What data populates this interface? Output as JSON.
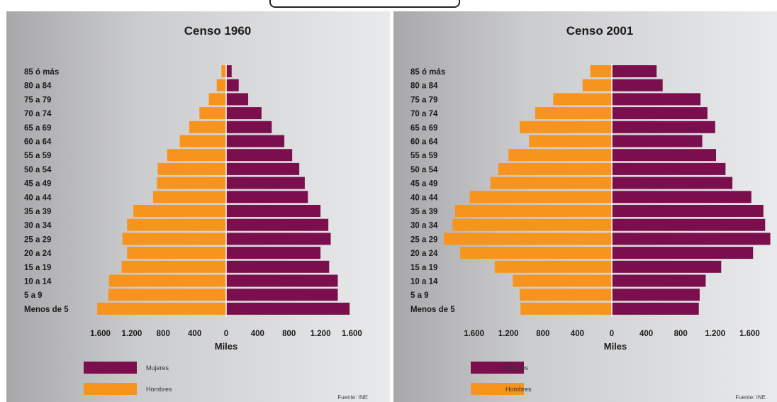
{
  "colors": {
    "mujeres": "#7b0f4d",
    "hombres": "#f7941d"
  },
  "chart_data": [
    {
      "type": "bar",
      "orientation": "horizontal-pyramid",
      "title": "Censo 1960",
      "categories": [
        "Menos de 5",
        "5 a 9",
        "10 a 14",
        "15 a 19",
        "20 a 24",
        "25 a 29",
        "30 a 34",
        "35 a 39",
        "40 a 44",
        "45 a 49",
        "50 a 54",
        "55 a 59",
        "60 a 64",
        "65 a 69",
        "70 a 74",
        "75 a 79",
        "80 a 84",
        "85 ó más"
      ],
      "series": [
        {
          "name": "Mujeres",
          "values": [
            1570,
            1420,
            1420,
            1310,
            1200,
            1330,
            1300,
            1200,
            1040,
            1000,
            930,
            840,
            740,
            580,
            450,
            280,
            160,
            70
          ]
        },
        {
          "name": "Hombres",
          "values": [
            1640,
            1500,
            1490,
            1330,
            1260,
            1320,
            1260,
            1180,
            930,
            880,
            870,
            750,
            590,
            470,
            340,
            220,
            120,
            60
          ]
        }
      ],
      "xticks": [
        "1.600",
        "1.200",
        "800",
        "400",
        "0",
        "400",
        "800",
        "1.200",
        "1.600"
      ],
      "xlabel": "Miles",
      "source": "Fuente: INE"
    },
    {
      "type": "bar",
      "orientation": "horizontal-pyramid",
      "title": "Censo 2001",
      "categories": [
        "Menos de 5",
        "5 a 9",
        "10 a 14",
        "15 a 19",
        "20 a 24",
        "25 a 29",
        "30 a 34",
        "35 a 39",
        "40 a 44",
        "45 a 49",
        "50 a 54",
        "55 a 59",
        "60 a 64",
        "65 a 69",
        "70 a 74",
        "75 a 79",
        "80 a 84",
        "85 ó más"
      ],
      "series": [
        {
          "name": "Mujeres",
          "values": [
            1010,
            1020,
            1090,
            1270,
            1640,
            1840,
            1780,
            1760,
            1620,
            1400,
            1320,
            1210,
            1050,
            1200,
            1110,
            1030,
            590,
            520
          ]
        },
        {
          "name": "Hombres",
          "values": [
            1060,
            1070,
            1150,
            1360,
            1760,
            1950,
            1850,
            1820,
            1650,
            1410,
            1320,
            1200,
            960,
            1070,
            890,
            680,
            340,
            250
          ]
        }
      ],
      "xticks": [
        "1.600",
        "1.200",
        "800",
        "400",
        "0",
        "400",
        "800",
        "1.200",
        "1.600"
      ],
      "xlabel": "Miles",
      "source": "Fuente: INE"
    }
  ]
}
